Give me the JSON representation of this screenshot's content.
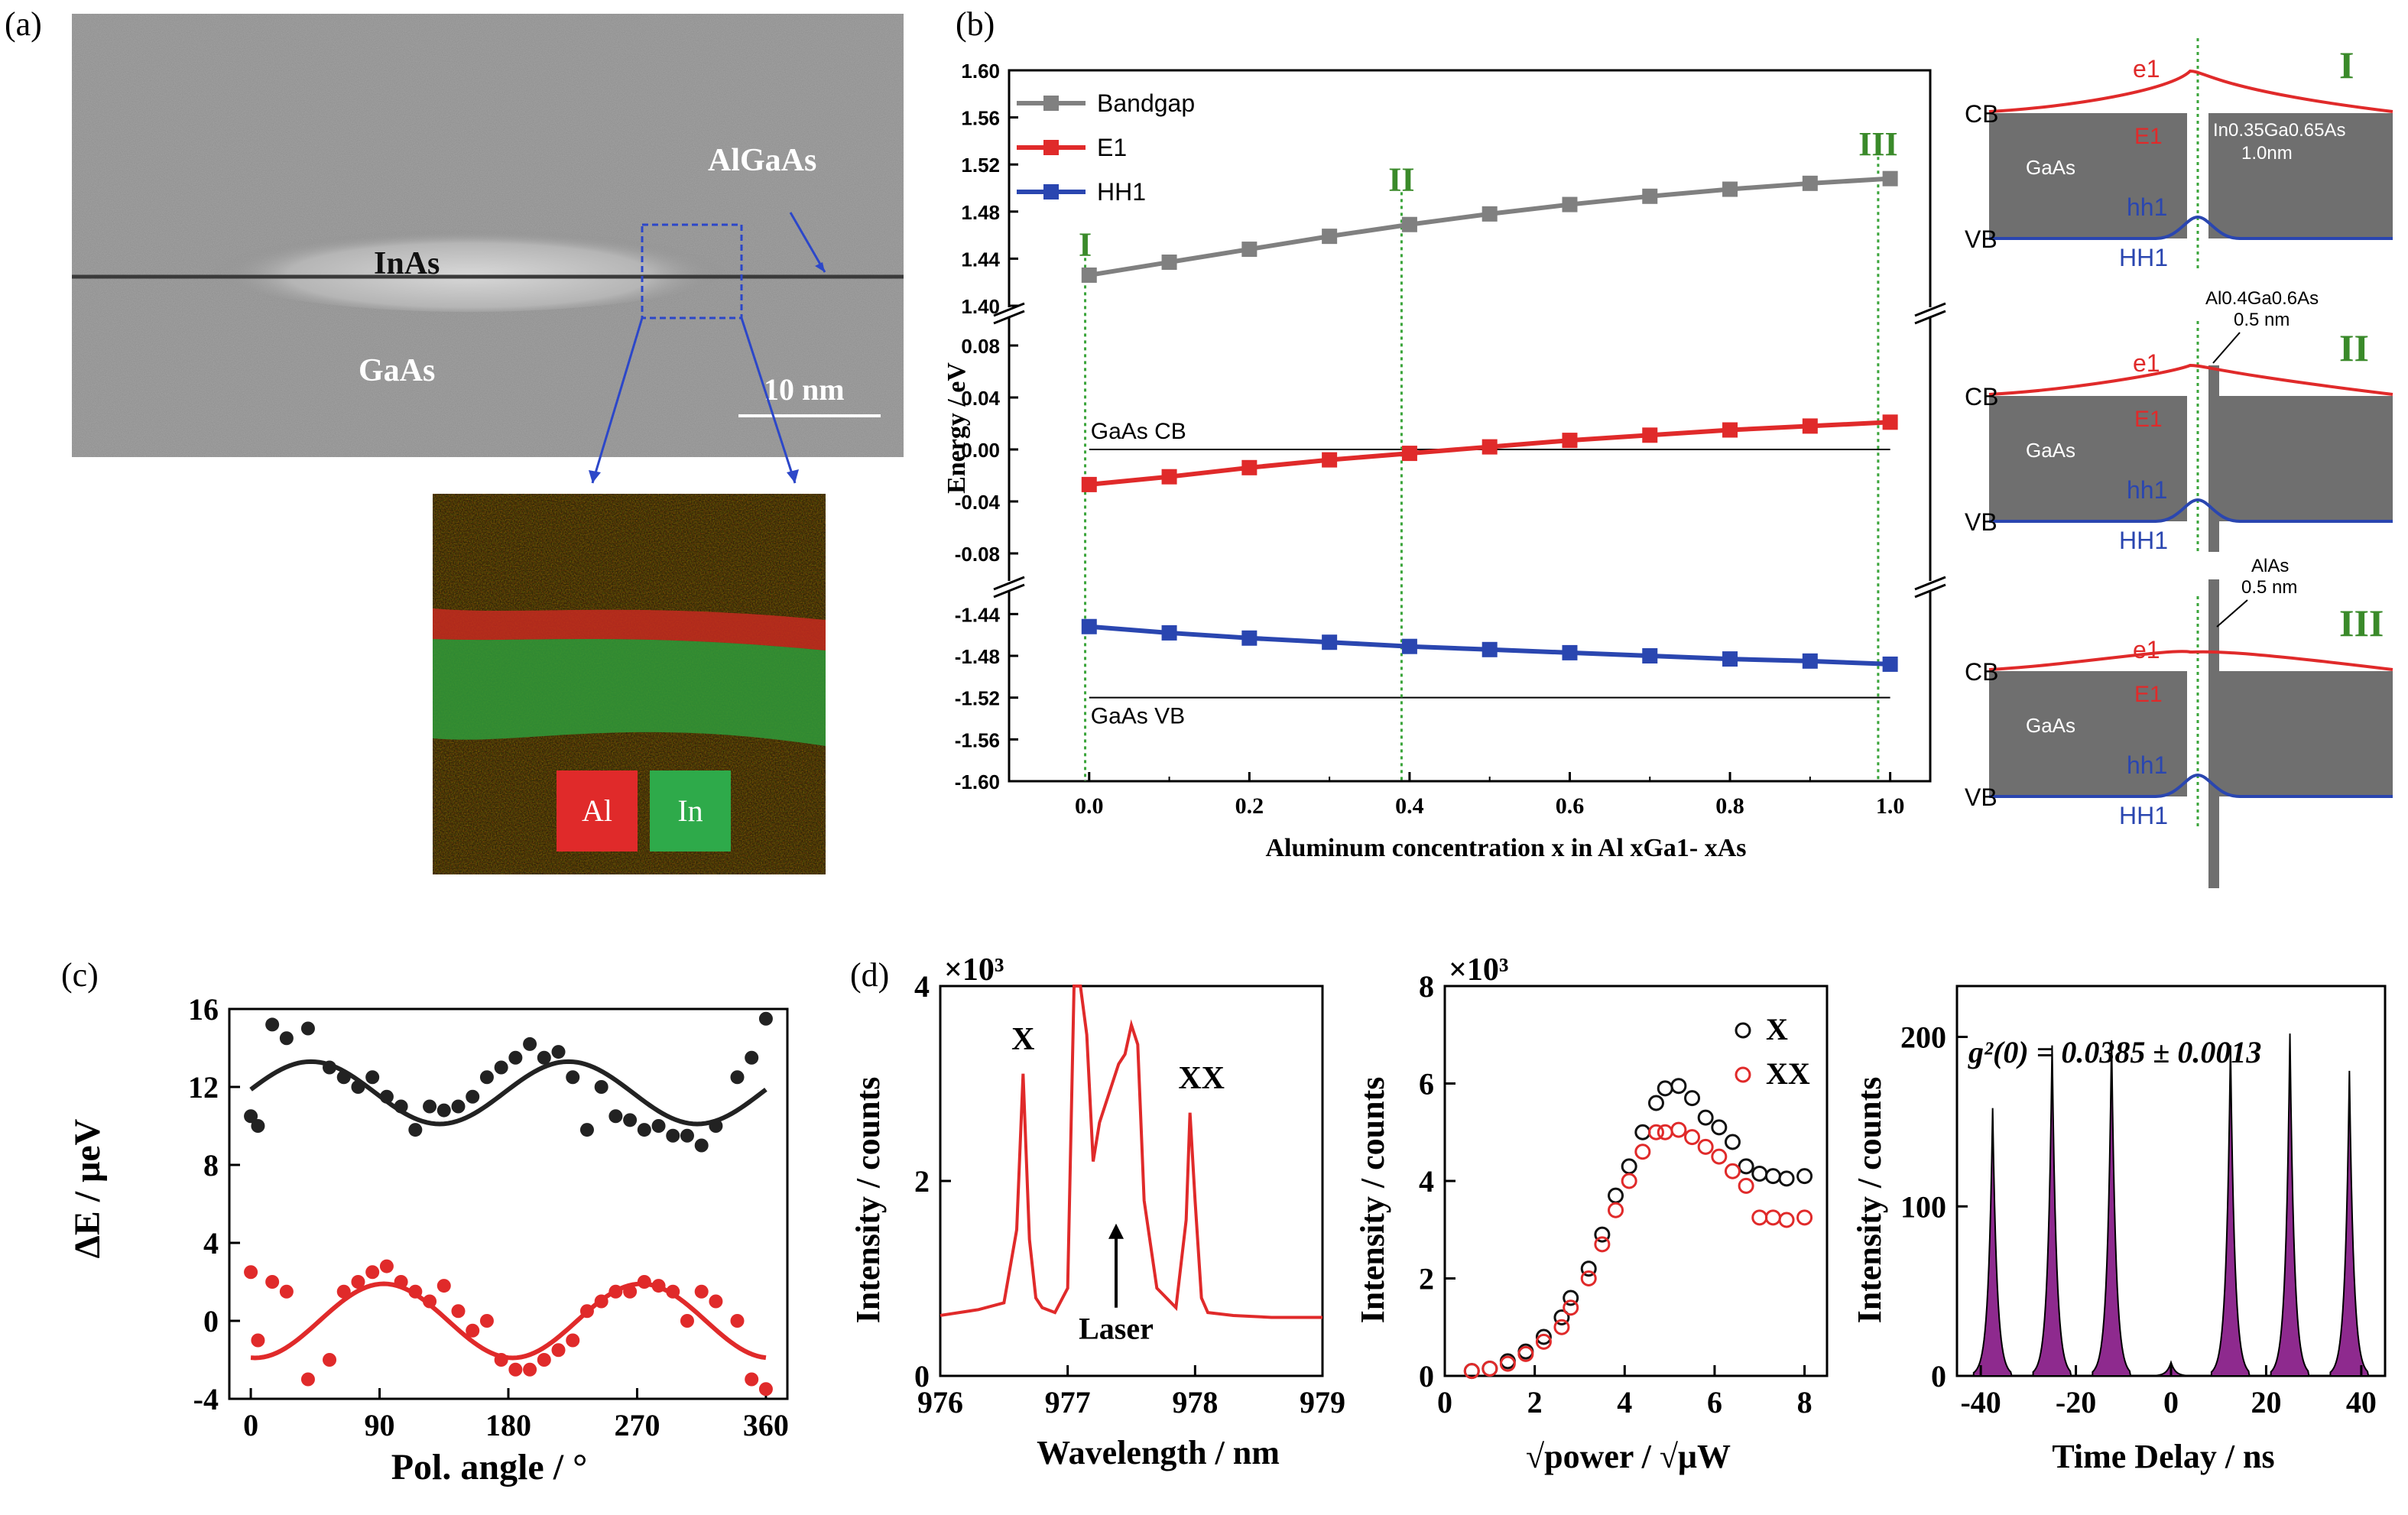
{
  "panels": {
    "a": {
      "letter": "(a)",
      "labels": {
        "algaas": "AlGaAs",
        "inas": "InAs",
        "gaas": "GaAs",
        "scale": "10 nm"
      },
      "legend": {
        "al": "Al",
        "in": "In"
      },
      "colors": {
        "al": "#e02a2a",
        "in": "#2eaa4a"
      }
    },
    "b": {
      "letter": "(b)",
      "chart_data": {
        "type": "line",
        "x": [
          0.0,
          0.1,
          0.2,
          0.3,
          0.4,
          0.5,
          0.6,
          0.7,
          0.8,
          0.9,
          1.0
        ],
        "series": [
          {
            "name": "Bandgap",
            "color": "#808080",
            "values": [
              1.426,
              1.437,
              1.448,
              1.459,
              1.469,
              1.478,
              1.486,
              1.493,
              1.499,
              1.504,
              1.508
            ]
          },
          {
            "name": "E1",
            "color": "#e02a2a",
            "values": [
              -0.027,
              -0.021,
              -0.014,
              -0.008,
              -0.003,
              0.002,
              0.007,
              0.011,
              0.015,
              0.018,
              0.021
            ]
          },
          {
            "name": "HH1",
            "color": "#2a46b0",
            "values": [
              -1.452,
              -1.458,
              -1.463,
              -1.467,
              -1.471,
              -1.474,
              -1.477,
              -1.48,
              -1.483,
              -1.485,
              -1.488
            ]
          }
        ],
        "xlabel": "Aluminum concentration x in Al xGa1- xAs",
        "ylabel": "Energy / eV",
        "xticks": [
          "0.0",
          "0.2",
          "0.4",
          "0.6",
          "0.8",
          "1.0"
        ],
        "yticks_top": [
          "1.60",
          "1.56",
          "1.52",
          "1.48",
          "1.44",
          "1.40"
        ],
        "yticks_mid": [
          "0.08",
          "0.04",
          "0.00",
          "-0.04",
          "-0.08"
        ],
        "yticks_bot": [
          "-1.44",
          "-1.48",
          "-1.52",
          "-1.56",
          "-1.60"
        ],
        "ref_lines": {
          "cb": "GaAs CB",
          "vb": "GaAs VB"
        },
        "markers": [
          "I",
          "II",
          "III"
        ]
      },
      "diagrams": {
        "cb": "CB",
        "vb": "VB",
        "e1": "e1",
        "E1": "E1",
        "hh1": "hh1",
        "HH1": "HH1",
        "gaas": "GaAs",
        "inga": "In0.35Ga0.65As",
        "inga_thick": "1.0nm",
        "alga": "Al0.4Ga0.6As",
        "alga_thick": "0.5 nm",
        "alas": "AlAs",
        "alas_thick": "0.5 nm",
        "roman": [
          "I",
          "II",
          "III"
        ]
      }
    },
    "c": {
      "letter": "(c)",
      "chart_data": {
        "type": "scatter",
        "xlabel": "Pol. angle / °",
        "ylabel": "ΔE / μeV",
        "xticks": [
          "0",
          "90",
          "180",
          "270",
          "360"
        ],
        "yticks": [
          "16",
          "12",
          "8",
          "4",
          "0",
          "-4"
        ],
        "xlim": [
          -15,
          375
        ],
        "ylim": [
          -4,
          16
        ],
        "series": [
          {
            "name": "",
            "color": "#222222",
            "x": [
              0,
              5,
              15,
              25,
              40,
              55,
              65,
              75,
              85,
              95,
              105,
              115,
              125,
              135,
              145,
              155,
              165,
              175,
              185,
              195,
              205,
              215,
              225,
              235,
              245,
              255,
              265,
              275,
              285,
              295,
              305,
              315,
              325,
              340,
              350,
              360
            ],
            "values": [
              10.5,
              10.0,
              15.2,
              14.5,
              15.0,
              13.0,
              12.5,
              12.0,
              12.5,
              11.5,
              11.0,
              9.8,
              11.0,
              10.8,
              11.0,
              11.5,
              12.5,
              13.0,
              13.5,
              14.2,
              13.5,
              13.8,
              12.5,
              9.8,
              12.0,
              10.5,
              10.3,
              9.8,
              10.0,
              9.5,
              9.5,
              9.0,
              10.0,
              12.5,
              13.5,
              15.5
            ],
            "fit": {
              "mean": 11.7,
              "amp": 1.6,
              "phase": 42
            }
          },
          {
            "name": "",
            "color": "#e02a2a",
            "x": [
              0,
              5,
              15,
              25,
              40,
              55,
              65,
              75,
              85,
              95,
              105,
              115,
              125,
              135,
              145,
              155,
              165,
              175,
              185,
              195,
              205,
              215,
              225,
              235,
              245,
              255,
              265,
              275,
              285,
              295,
              305,
              315,
              325,
              340,
              350,
              360
            ],
            "values": [
              2.5,
              -1.0,
              2.0,
              1.5,
              -3.0,
              -2.0,
              1.5,
              2.0,
              2.5,
              2.8,
              2.0,
              1.5,
              1.0,
              1.8,
              0.5,
              -0.5,
              0.0,
              -2.0,
              -2.5,
              -2.5,
              -2.0,
              -1.5,
              -1.0,
              0.5,
              1.0,
              1.5,
              1.5,
              2.0,
              1.8,
              1.5,
              0.0,
              1.5,
              1.0,
              0.0,
              -3.0,
              -3.5
            ],
            "fit": {
              "mean": 0.0,
              "amp": 1.9,
              "phase": 93
            }
          }
        ]
      }
    },
    "d": {
      "letter": "(d)",
      "spectrum": {
        "chart_data": {
          "type": "line",
          "xlabel": "Wavelength / nm",
          "ylabel": "Intensity / counts",
          "multiplier": "×10³",
          "xticks": [
            "976",
            "977",
            "978",
            "979"
          ],
          "yticks": [
            "0",
            "2",
            "4"
          ],
          "xlim": [
            976,
            979
          ],
          "ylim": [
            0,
            4
          ],
          "annotations": {
            "x": "X",
            "xx": "XX",
            "laser": "Laser"
          },
          "x": [
            976.0,
            976.3,
            976.5,
            976.6,
            976.65,
            976.7,
            976.75,
            976.8,
            976.9,
            977.0,
            977.05,
            977.1,
            977.15,
            977.2,
            977.25,
            977.3,
            977.35,
            977.4,
            977.45,
            977.5,
            977.55,
            977.6,
            977.7,
            977.85,
            977.93,
            977.96,
            978.0,
            978.05,
            978.1,
            978.3,
            978.6,
            979.0
          ],
          "values": [
            0.62,
            0.68,
            0.75,
            1.5,
            3.1,
            1.4,
            0.8,
            0.7,
            0.65,
            0.9,
            4.0,
            4.0,
            3.5,
            2.2,
            2.6,
            2.8,
            3.0,
            3.2,
            3.3,
            3.6,
            3.4,
            1.8,
            0.9,
            0.7,
            1.6,
            2.7,
            1.8,
            0.8,
            0.65,
            0.62,
            0.6,
            0.6
          ],
          "color": "#e02a2a"
        }
      },
      "power": {
        "chart_data": {
          "type": "scatter",
          "xlabel": "√power / √μW",
          "ylabel": "Intensity / counts",
          "multiplier": "×10³",
          "xticks": [
            "0",
            "2",
            "4",
            "6",
            "8"
          ],
          "yticks": [
            "0",
            "2",
            "4",
            "6",
            "8"
          ],
          "xlim": [
            0,
            8.5
          ],
          "ylim": [
            0,
            8
          ],
          "series": [
            {
              "name": "X",
              "color": "#111111",
              "x": [
                0.6,
                1.0,
                1.4,
                1.8,
                2.2,
                2.6,
                2.8,
                3.2,
                3.5,
                3.8,
                4.1,
                4.4,
                4.7,
                4.9,
                5.2,
                5.5,
                5.8,
                6.1,
                6.4,
                6.7,
                7.0,
                7.3,
                7.6,
                8.0
              ],
              "values": [
                0.1,
                0.15,
                0.3,
                0.5,
                0.8,
                1.2,
                1.6,
                2.2,
                2.9,
                3.7,
                4.3,
                5.0,
                5.6,
                5.9,
                5.95,
                5.7,
                5.3,
                5.1,
                4.8,
                4.3,
                4.15,
                4.1,
                4.05,
                4.1
              ]
            },
            {
              "name": "XX",
              "color": "#e02a2a",
              "x": [
                0.6,
                1.0,
                1.4,
                1.8,
                2.2,
                2.6,
                2.8,
                3.2,
                3.5,
                3.8,
                4.1,
                4.4,
                4.7,
                4.9,
                5.2,
                5.5,
                5.8,
                6.1,
                6.4,
                6.7,
                7.0,
                7.3,
                7.6,
                8.0
              ],
              "values": [
                0.1,
                0.15,
                0.25,
                0.45,
                0.7,
                1.0,
                1.4,
                2.0,
                2.7,
                3.4,
                4.0,
                4.6,
                5.0,
                5.0,
                5.05,
                4.9,
                4.7,
                4.5,
                4.2,
                3.9,
                3.25,
                3.25,
                3.2,
                3.25
              ]
            }
          ]
        }
      },
      "g2": {
        "chart_data": {
          "type": "area",
          "xlabel": "Time Delay / ns",
          "ylabel": "Intensity / counts",
          "annotation": "g²(0) = 0.0385 ± 0.0013",
          "xticks": [
            "-40",
            "-20",
            "0",
            "20",
            "40"
          ],
          "yticks": [
            "0",
            "100",
            "200"
          ],
          "xlim": [
            -45,
            45
          ],
          "ylim": [
            0,
            230
          ],
          "peak_positions": [
            -37.5,
            -25,
            -12.5,
            0,
            12.5,
            25,
            37.5
          ],
          "peak_heights": [
            158,
            195,
            198,
            8,
            195,
            202,
            180
          ],
          "color": "#8e2a8e"
        }
      }
    }
  }
}
